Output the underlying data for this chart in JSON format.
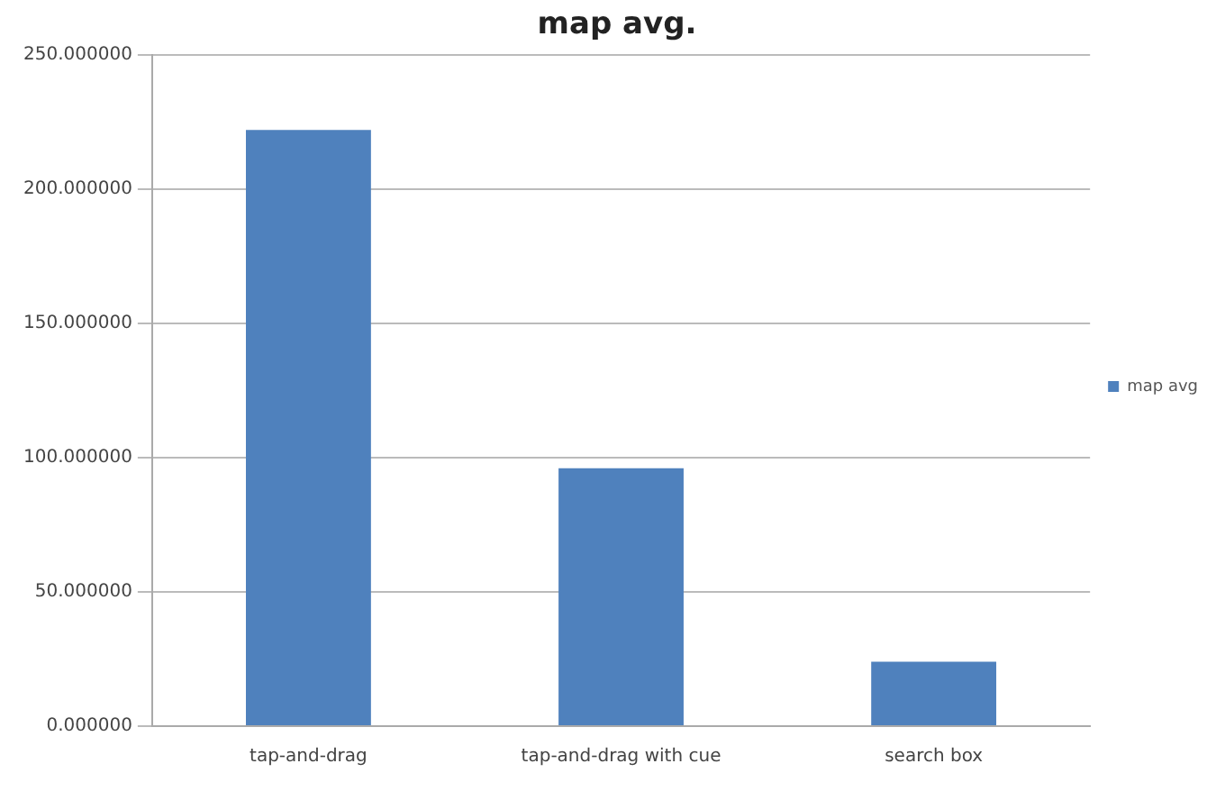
{
  "chart_data": {
    "type": "bar",
    "title": "map avg.",
    "categories": [
      "tap-and-drag",
      "tap-and-drag with cue",
      "search box"
    ],
    "series": [
      {
        "name": "map avg",
        "color": "#4f81bd",
        "values": [
          222,
          96,
          24
        ]
      }
    ],
    "ylim": [
      0,
      250
    ],
    "yticks": [
      {
        "value": 0,
        "label": "0.000000"
      },
      {
        "value": 50,
        "label": "50.000000"
      },
      {
        "value": 100,
        "label": "100.000000"
      },
      {
        "value": 150,
        "label": "150.000000"
      },
      {
        "value": 200,
        "label": "200.000000"
      },
      {
        "value": 250,
        "label": "250.000000"
      }
    ],
    "grid": "y",
    "legend": "right"
  }
}
